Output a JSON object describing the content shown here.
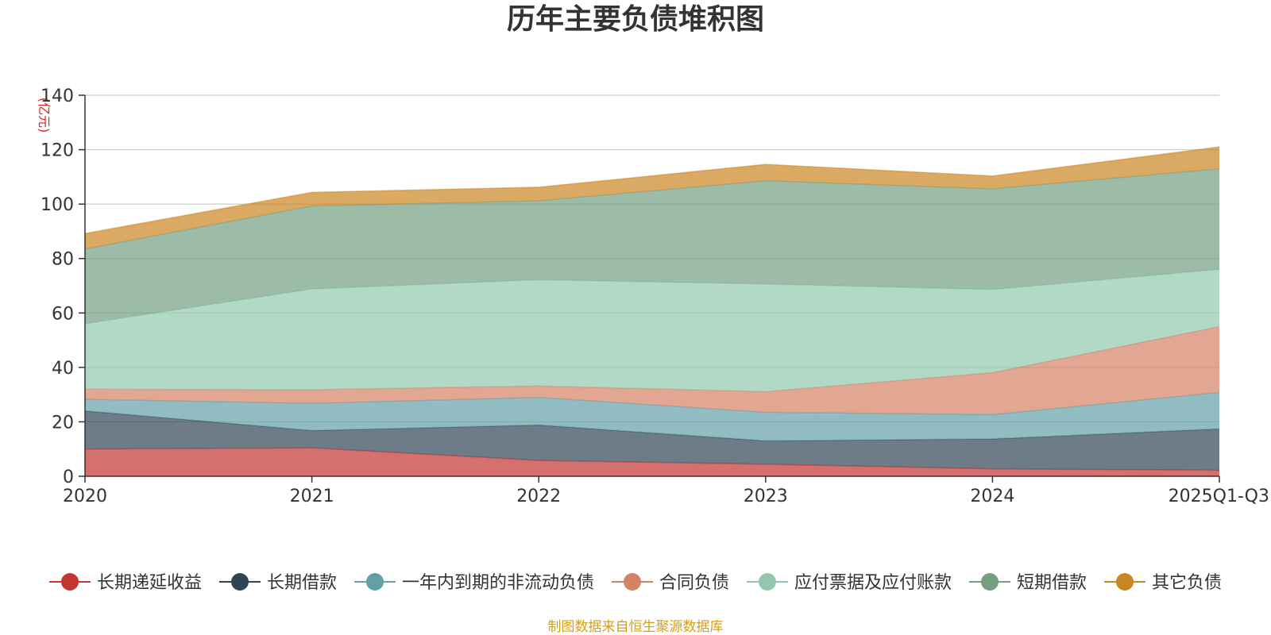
{
  "chart_data": {
    "type": "area",
    "stacked": true,
    "title": "历年主要负债堆积图",
    "unit_label": "(亿元)",
    "categories": [
      "2020",
      "2021",
      "2022",
      "2023",
      "2024",
      "2025Q1-Q3"
    ],
    "y_ticks": [
      "0",
      "20",
      "40",
      "60",
      "80",
      "100",
      "120",
      "140"
    ],
    "ylim": [
      0,
      140
    ],
    "grid": true,
    "legend_position": "bottom",
    "series": [
      {
        "name": "长期递延收益",
        "color": "#c23531",
        "values": [
          10.0,
          10.4,
          5.8,
          4.4,
          2.7,
          2.2
        ]
      },
      {
        "name": "长期借款",
        "color": "#2f4554",
        "values": [
          14.0,
          6.4,
          13.0,
          8.6,
          11.0,
          15.2
        ]
      },
      {
        "name": "一年内到期的非流动负债",
        "color": "#61a0a8",
        "values": [
          4.3,
          10.0,
          10.2,
          10.5,
          9.0,
          13.4
        ]
      },
      {
        "name": "合同负债",
        "color": "#d48265",
        "values": [
          3.7,
          5.0,
          4.2,
          7.6,
          15.4,
          24.2
        ]
      },
      {
        "name": "应付票据及应付账款",
        "color": "#91c7ae",
        "values": [
          24.0,
          37.0,
          39.0,
          39.5,
          30.5,
          21.0
        ]
      },
      {
        "name": "短期借款",
        "color": "#749f83",
        "values": [
          27.5,
          30.5,
          29.0,
          38.0,
          37.0,
          37.0
        ]
      },
      {
        "name": "其它负债",
        "color": "#ca8622",
        "values": [
          5.7,
          5.0,
          5.0,
          6.0,
          4.7,
          8.0
        ]
      }
    ],
    "source": "制图数据来自恒生聚源数据库"
  }
}
